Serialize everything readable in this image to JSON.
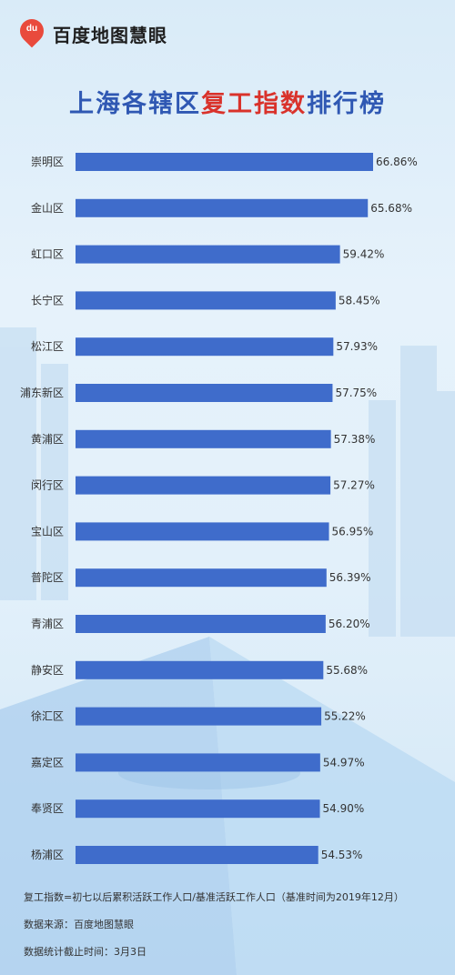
{
  "brand": {
    "name": "百度地图慧眼",
    "logo_text": "du"
  },
  "title": {
    "part1": "上海各辖区",
    "part2": "复工指数",
    "part3": "排行榜"
  },
  "colors": {
    "bar": "#3f6ccb",
    "title_blue": "#2f58b3",
    "title_red": "#d9322b"
  },
  "chart_data": {
    "type": "bar",
    "orientation": "horizontal",
    "title": "上海各辖区复工指数排行榜",
    "categories": [
      "崇明区",
      "金山区",
      "虹口区",
      "长宁区",
      "松江区",
      "浦东新区",
      "黄浦区",
      "闵行区",
      "宝山区",
      "普陀区",
      "青浦区",
      "静安区",
      "徐汇区",
      "嘉定区",
      "奉贤区",
      "杨浦区"
    ],
    "values": [
      66.86,
      65.68,
      59.42,
      58.45,
      57.93,
      57.75,
      57.38,
      57.27,
      56.95,
      56.39,
      56.2,
      55.68,
      55.22,
      54.97,
      54.9,
      54.53
    ],
    "value_labels": [
      "66.86%",
      "65.68%",
      "59.42%",
      "58.45%",
      "57.93%",
      "57.75%",
      "57.38%",
      "57.27%",
      "56.95%",
      "56.39%",
      "56.20%",
      "55.68%",
      "55.22%",
      "54.97%",
      "54.90%",
      "54.53%"
    ],
    "unit": "%",
    "grid": false,
    "legend": "none"
  },
  "footer": {
    "note": "复工指数=初七以后累积活跃工作人口/基准活跃工作人口（基准时间为2019年12月）",
    "source": "数据来源：百度地图慧眼",
    "date": "数据统计截止时间：3月3日"
  }
}
